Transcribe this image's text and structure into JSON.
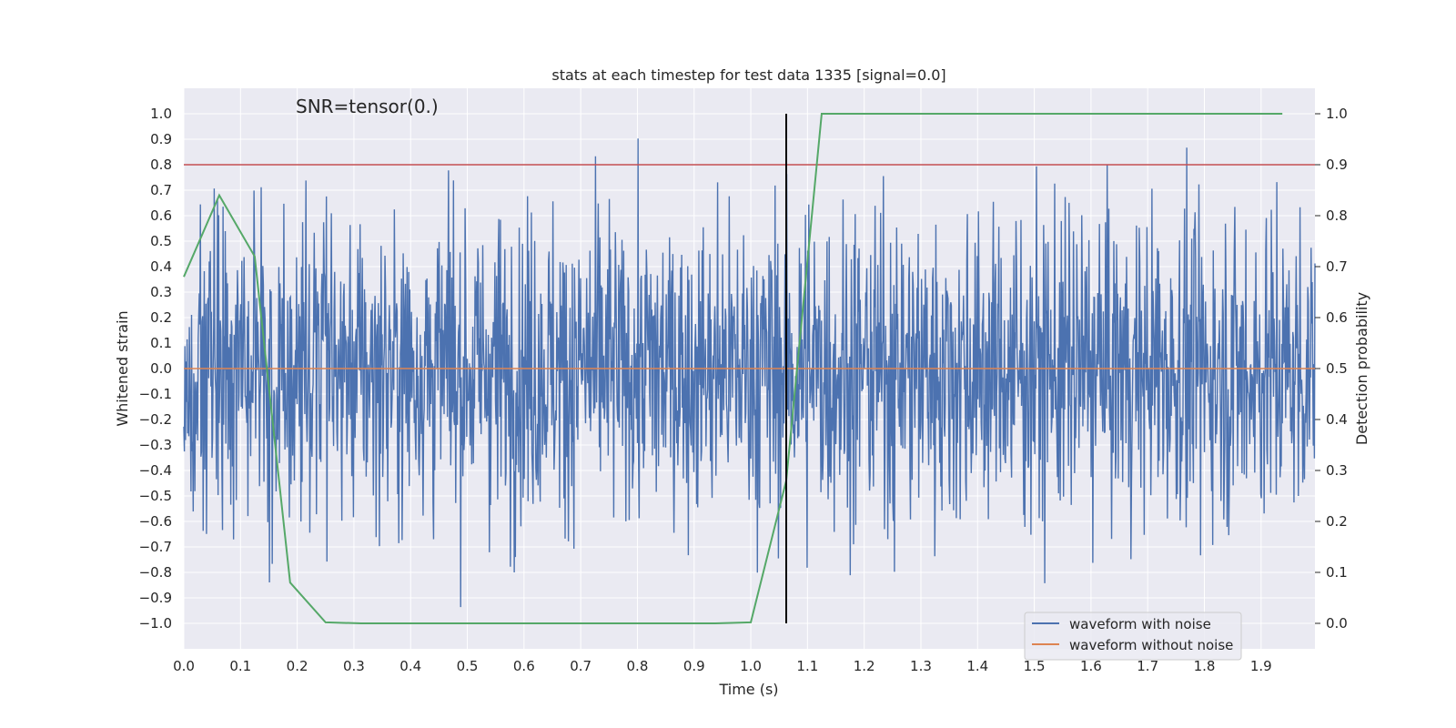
{
  "chart_data": {
    "type": "line",
    "title": "stats at each timestep for test data 1335 [signal=0.0]",
    "annotation": "SNR=tensor(0.)",
    "xlabel": "Time (s)",
    "ylabel": "Whitened strain",
    "y2label": "Detection probability",
    "xlim": [
      0.0,
      1.995
    ],
    "ylim": [
      -1.1,
      1.1
    ],
    "y2lim": [
      -0.05,
      1.05
    ],
    "xticks": [
      "0.0",
      "0.1",
      "0.2",
      "0.3",
      "0.4",
      "0.5",
      "0.6",
      "0.7",
      "0.8",
      "0.9",
      "1.0",
      "1.1",
      "1.2",
      "1.3",
      "1.4",
      "1.5",
      "1.6",
      "1.7",
      "1.8",
      "1.9"
    ],
    "yticks": [
      "−1.0",
      "−0.9",
      "−0.8",
      "−0.7",
      "−0.6",
      "−0.5",
      "−0.4",
      "−0.3",
      "−0.2",
      "−0.1",
      "0.0",
      "0.1",
      "0.2",
      "0.3",
      "0.4",
      "0.5",
      "0.6",
      "0.7",
      "0.8",
      "0.9",
      "1.0"
    ],
    "y2ticks": [
      "0.0",
      "0.1",
      "0.2",
      "0.3",
      "0.4",
      "0.5",
      "0.6",
      "0.7",
      "0.8",
      "0.9",
      "1.0"
    ],
    "grid": true,
    "legend_position": "lower-right",
    "series": [
      {
        "name": "waveform with noise",
        "color": "#4c72b0",
        "axis": "left",
        "kind": "noise",
        "n_samples": 2048,
        "sigma": 0.3,
        "max": 1.0,
        "min": -1.0
      },
      {
        "name": "waveform without noise",
        "color": "#dd8452",
        "axis": "left",
        "x": [
          0.0,
          1.995
        ],
        "y": [
          0.0,
          0.0
        ]
      },
      {
        "name": "detection probability",
        "color": "#55a868",
        "axis": "right",
        "legend": false,
        "x": [
          0.0,
          0.0625,
          0.125,
          0.1875,
          0.25,
          0.3125,
          0.375,
          0.4375,
          0.5,
          0.5625,
          0.625,
          0.6875,
          0.75,
          0.8125,
          0.875,
          0.9375,
          1.0,
          1.0625,
          1.125,
          1.1875,
          1.25,
          1.3125,
          1.375,
          1.4375,
          1.5,
          1.5625,
          1.625,
          1.6875,
          1.75,
          1.8125,
          1.875,
          1.9375
        ],
        "y": [
          0.68,
          0.84,
          0.72,
          0.08,
          0.002,
          0.0,
          0.0,
          0.0,
          0.0,
          0.0,
          0.0,
          0.0,
          0.0,
          0.0,
          0.0,
          0.0,
          0.002,
          0.28,
          1.0,
          1.0,
          1.0,
          1.0,
          1.0,
          1.0,
          1.0,
          1.0,
          1.0,
          1.0,
          1.0,
          1.0,
          1.0,
          1.0
        ]
      }
    ],
    "hlines": [
      {
        "name": "threshold",
        "axis": "left",
        "y": 0.8,
        "color": "#c44e52"
      }
    ],
    "vlines": [
      {
        "name": "marker",
        "x": 1.0625,
        "ymin": -1.0,
        "ymax": 1.0,
        "color": "#000000"
      }
    ]
  }
}
